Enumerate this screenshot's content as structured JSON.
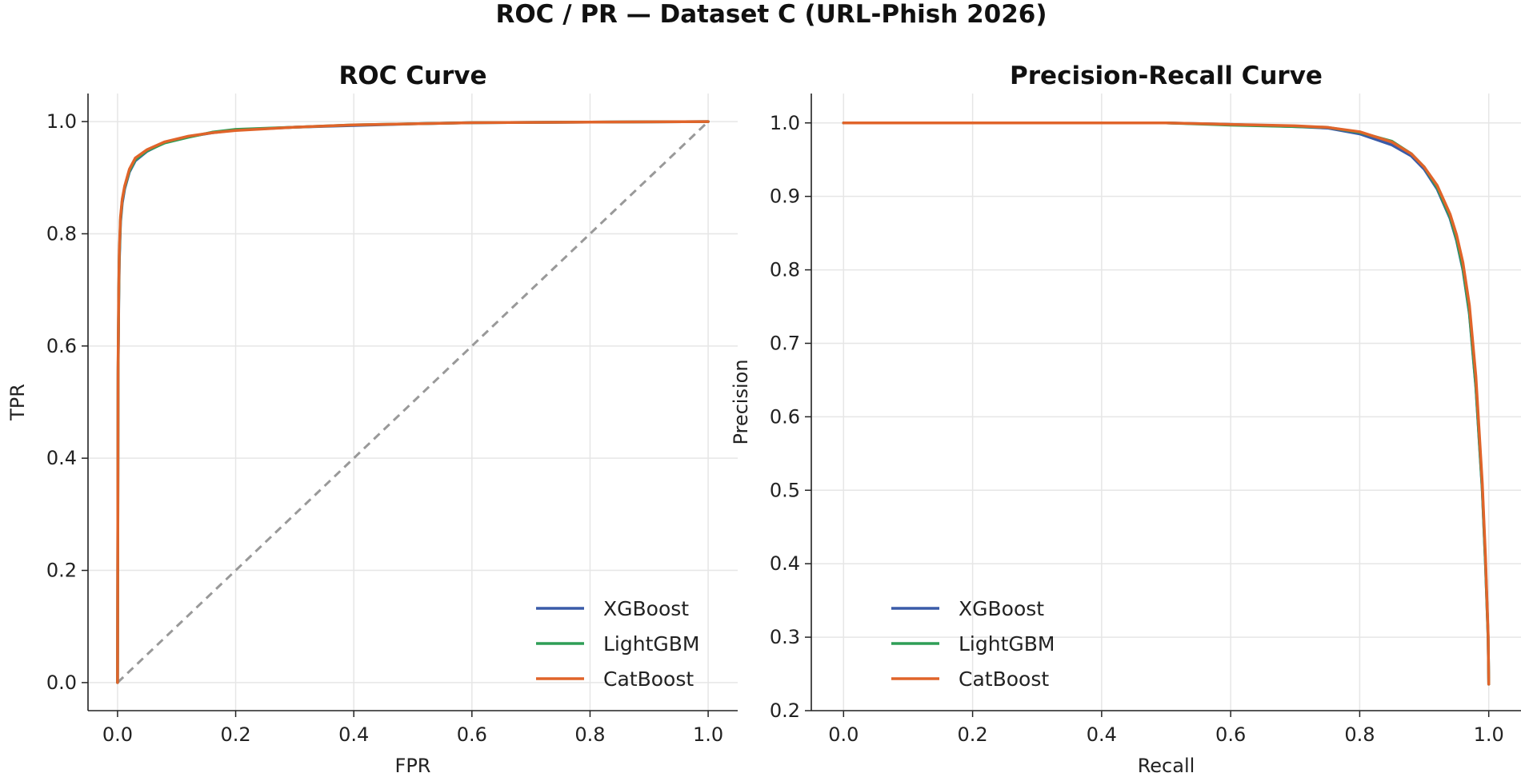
{
  "figure_title": "ROC / PR — Dataset C (URL-Phish 2026)",
  "colors": {
    "XGBoost": "#3a5ba8",
    "LightGBM": "#2e9e56",
    "CatBoost": "#e0642a",
    "diagonal": "#999999",
    "grid": "#e6e6e6"
  },
  "chart_data": [
    {
      "id": "roc",
      "type": "line",
      "title": "ROC Curve",
      "xlabel": "FPR",
      "ylabel": "TPR",
      "xlim": [
        -0.05,
        1.05
      ],
      "ylim": [
        -0.05,
        1.05
      ],
      "xticks": [
        "0.0",
        "0.2",
        "0.4",
        "0.6",
        "0.8",
        "1.0"
      ],
      "yticks": [
        "0.0",
        "0.2",
        "0.4",
        "0.6",
        "0.8",
        "1.0"
      ],
      "grid": true,
      "legend": "lower right",
      "reference_line": {
        "style": "dashed",
        "x": [
          0,
          1
        ],
        "y": [
          0,
          1
        ]
      },
      "series": [
        {
          "name": "XGBoost",
          "color": "#3a5ba8",
          "x": [
            0,
            0.001,
            0.002,
            0.003,
            0.005,
            0.008,
            0.012,
            0.02,
            0.03,
            0.05,
            0.08,
            0.12,
            0.16,
            0.2,
            0.3,
            0.4,
            0.5,
            0.6,
            0.8,
            1.0
          ],
          "y": [
            0,
            0.55,
            0.68,
            0.75,
            0.82,
            0.855,
            0.88,
            0.91,
            0.93,
            0.947,
            0.963,
            0.973,
            0.98,
            0.985,
            0.99,
            0.993,
            0.996,
            0.998,
            0.999,
            1.0
          ]
        },
        {
          "name": "LightGBM",
          "color": "#2e9e56",
          "x": [
            0,
            0.001,
            0.002,
            0.003,
            0.005,
            0.008,
            0.012,
            0.02,
            0.03,
            0.05,
            0.08,
            0.12,
            0.16,
            0.2,
            0.3,
            0.4,
            0.5,
            0.6,
            0.8,
            1.0
          ],
          "y": [
            0,
            0.56,
            0.69,
            0.76,
            0.825,
            0.86,
            0.883,
            0.912,
            0.932,
            0.948,
            0.962,
            0.972,
            0.981,
            0.986,
            0.99,
            0.994,
            0.996,
            0.998,
            0.999,
            1.0
          ]
        },
        {
          "name": "CatBoost",
          "color": "#e0642a",
          "x": [
            0,
            0.001,
            0.002,
            0.003,
            0.005,
            0.008,
            0.012,
            0.02,
            0.03,
            0.05,
            0.08,
            0.12,
            0.16,
            0.2,
            0.3,
            0.4,
            0.5,
            0.6,
            0.8,
            1.0
          ],
          "y": [
            0,
            0.57,
            0.7,
            0.77,
            0.83,
            0.862,
            0.885,
            0.915,
            0.935,
            0.95,
            0.964,
            0.974,
            0.98,
            0.984,
            0.99,
            0.994,
            0.996,
            0.998,
            0.999,
            1.0
          ]
        }
      ]
    },
    {
      "id": "pr",
      "type": "line",
      "title": "Precision-Recall Curve",
      "xlabel": "Recall",
      "ylabel": "Precision",
      "xlim": [
        -0.05,
        1.05
      ],
      "ylim": [
        0.2,
        1.04
      ],
      "xticks": [
        "0.0",
        "0.2",
        "0.4",
        "0.6",
        "0.8",
        "1.0"
      ],
      "yticks": [
        "0.2",
        "0.3",
        "0.4",
        "0.5",
        "0.6",
        "0.7",
        "0.8",
        "0.9",
        "1.0"
      ],
      "grid": true,
      "legend": "lower left",
      "series": [
        {
          "name": "XGBoost",
          "color": "#3a5ba8",
          "x": [
            0,
            0.3,
            0.5,
            0.6,
            0.7,
            0.75,
            0.8,
            0.85,
            0.88,
            0.9,
            0.92,
            0.94,
            0.95,
            0.96,
            0.97,
            0.98,
            0.99,
            0.995,
            0.999,
            1.0
          ],
          "y": [
            1.0,
            1.0,
            1.0,
            0.998,
            0.995,
            0.993,
            0.985,
            0.97,
            0.955,
            0.937,
            0.91,
            0.87,
            0.84,
            0.8,
            0.74,
            0.64,
            0.5,
            0.4,
            0.3,
            0.236
          ]
        },
        {
          "name": "LightGBM",
          "color": "#2e9e56",
          "x": [
            0,
            0.3,
            0.5,
            0.6,
            0.7,
            0.75,
            0.8,
            0.85,
            0.88,
            0.9,
            0.92,
            0.94,
            0.95,
            0.96,
            0.97,
            0.98,
            0.99,
            0.995,
            0.999,
            1.0
          ],
          "y": [
            1.0,
            1.0,
            1.0,
            0.997,
            0.995,
            0.994,
            0.987,
            0.975,
            0.958,
            0.94,
            0.912,
            0.872,
            0.842,
            0.802,
            0.742,
            0.642,
            0.502,
            0.4,
            0.3,
            0.236
          ]
        },
        {
          "name": "CatBoost",
          "color": "#e0642a",
          "x": [
            0,
            0.3,
            0.5,
            0.6,
            0.7,
            0.75,
            0.8,
            0.85,
            0.88,
            0.9,
            0.92,
            0.94,
            0.95,
            0.96,
            0.97,
            0.98,
            0.99,
            0.995,
            0.999,
            1.0
          ],
          "y": [
            1.0,
            1.0,
            1.0,
            0.998,
            0.996,
            0.994,
            0.988,
            0.974,
            0.958,
            0.94,
            0.915,
            0.876,
            0.848,
            0.81,
            0.752,
            0.655,
            0.51,
            0.41,
            0.305,
            0.236
          ]
        }
      ]
    }
  ]
}
